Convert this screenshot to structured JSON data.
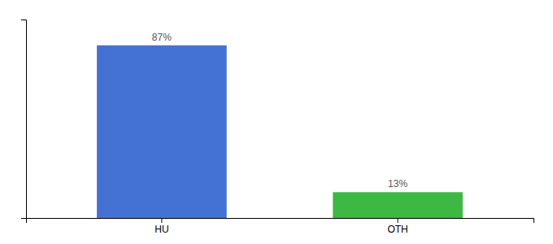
{
  "chart_data": {
    "type": "bar",
    "categories": [
      "HU",
      "OTH"
    ],
    "values": [
      87,
      13
    ],
    "colors": [
      "#4472d4",
      "#3cb843"
    ],
    "data_labels": true,
    "value_labels": [
      "87%",
      "13%"
    ],
    "ylim": [
      0,
      100
    ],
    "yticks": [],
    "tick_labels": "x",
    "grid": false
  }
}
